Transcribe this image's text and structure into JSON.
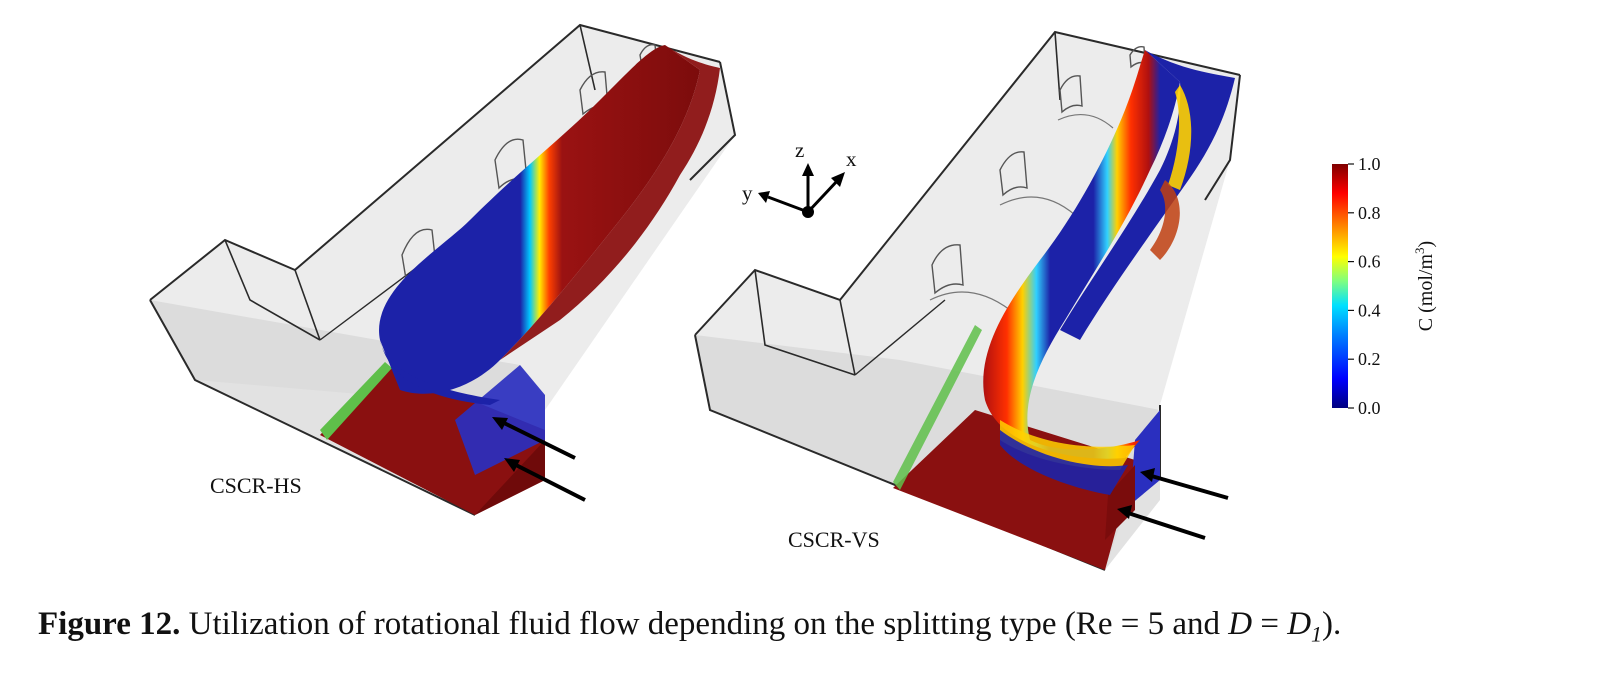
{
  "figure": {
    "panels": [
      {
        "label": "CSCR-HS"
      },
      {
        "label": "CSCR-VS"
      }
    ],
    "axes_triad": {
      "z": "z",
      "x": "x",
      "y": "y"
    },
    "colorbar": {
      "title": "C (mol/m",
      "title_sup": "3",
      "title_close": ")",
      "ticks": [
        "0.0",
        "0.2",
        "0.4",
        "0.6",
        "0.8",
        "1.0"
      ],
      "colormap": [
        "#00007f",
        "#0000ff",
        "#0080ff",
        "#00e0ff",
        "#7fff7f",
        "#ffff00",
        "#ff8000",
        "#ff0000",
        "#7f0000"
      ]
    },
    "colors": {
      "channel_fill": "#e6e6e6",
      "channel_stroke": "#2a2a2a",
      "low_concentration": "#1c22a8",
      "high_concentration": "#8a1010",
      "interface_green": "#5fbf4a"
    }
  },
  "caption": {
    "label": "Figure 12.",
    "text_before": " Utilization of rotational fluid flow depending on the splitting type (Re = 5 and ",
    "var": "D",
    "eq": " = ",
    "var2": "D",
    "sub": "1",
    "text_after": ")."
  }
}
